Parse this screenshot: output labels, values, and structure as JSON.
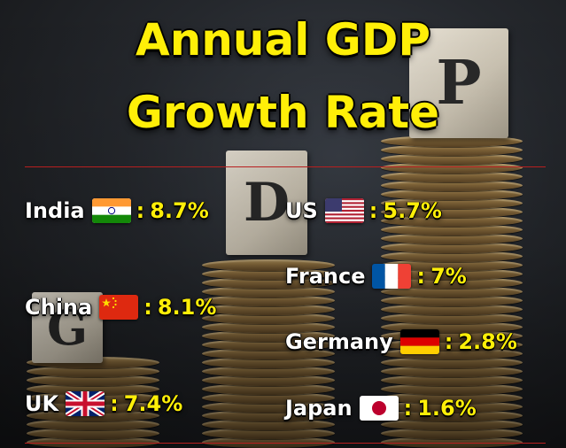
{
  "title": {
    "line1": "Annual GDP",
    "line2": "Growth Rate"
  },
  "cubes": {
    "g": "G",
    "d": "D",
    "p": "P"
  },
  "colors": {
    "title": "#ffef08",
    "value": "#ffef08",
    "country": "#ffffff",
    "divider": "#b81f1f"
  },
  "entries": [
    {
      "country": "India",
      "flag": "india-flag-icon",
      "sep": ":",
      "value": "8.7%"
    },
    {
      "country": "China",
      "flag": "china-flag-icon",
      "sep": ":",
      "value": "8.1%"
    },
    {
      "country": "UK",
      "flag": "uk-flag-icon",
      "sep": ":",
      "value": "7.4%"
    },
    {
      "country": "US",
      "flag": "us-flag-icon",
      "sep": ":",
      "value": "5.7%"
    },
    {
      "country": "France",
      "flag": "france-flag-icon",
      "sep": ":",
      "value": "7%"
    },
    {
      "country": "Germany",
      "flag": "germany-flag-icon",
      "sep": ":",
      "value": "2.8%"
    },
    {
      "country": "Japan",
      "flag": "japan-flag-icon",
      "sep": ":",
      "value": "1.6%"
    }
  ]
}
